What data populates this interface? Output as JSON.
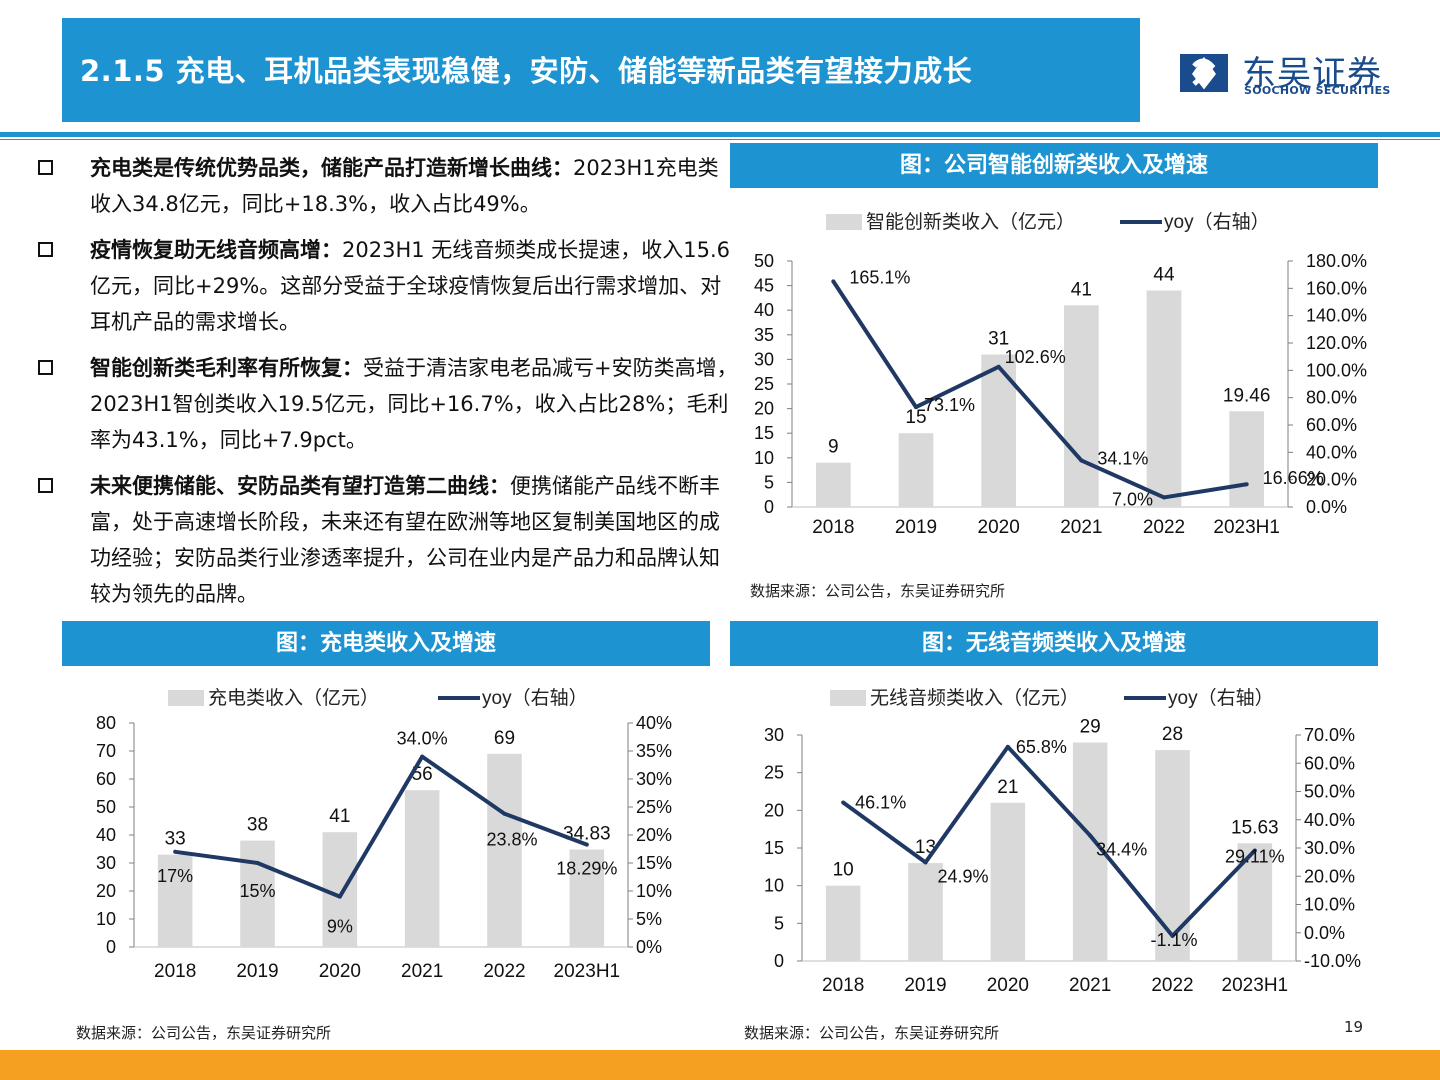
{
  "header": {
    "title": "2.1.5 充电、耳机品类表现稳健，安防、储能等新品类有望接力成长",
    "logo_cn": "东吴证券",
    "logo_en": "SOOCHOW SECURITIES"
  },
  "bullets": [
    {
      "bold": "充电类是传统优势品类，储能产品打造新增长曲线：",
      "text": "2023H1充电类收入34.8亿元，同比+18.3%，收入占比49%。"
    },
    {
      "bold": "疫情恢复助无线音频高增：",
      "text": "2023H1 无线音频类成长提速，收入15.6亿元，同比+29%。这部分受益于全球疫情恢复后出行需求增加、对耳机产品的需求增长。"
    },
    {
      "bold": "智能创新类毛利率有所恢复：",
      "text": "受益于清洁家电老品减亏+安防类高增，2023H1智创类收入19.5亿元，同比+16.7%，收入占比28%；毛利率为43.1%，同比+7.9pct。"
    },
    {
      "bold": "未来便携储能、安防品类有望打造第二曲线：",
      "text": "便携储能产品线不断丰富，处于高速增长阶段，未来还有望在欧洲等地区复制美国地区的成功经验；安防品类行业渗透率提升，公司在业内是产品力和品牌认知较为领先的品牌。"
    }
  ],
  "source_text": "数据来源：公司公告，东吴证券研究所",
  "page_number": "19",
  "colors": {
    "accent": "#1d93d1",
    "bar": "#d9d9d9",
    "line": "#1f3864",
    "footer": "#f5a020"
  },
  "chart_data": [
    {
      "id": "smart",
      "type": "bar",
      "title": "图：公司智能创新类收入及增速",
      "categories": [
        "2018",
        "2019",
        "2020",
        "2021",
        "2022",
        "2023H1"
      ],
      "bar_series": {
        "name": "智能创新类收入（亿元）",
        "values": [
          9,
          15,
          31,
          41,
          44,
          19.46
        ],
        "labels": [
          "9",
          "15",
          "31",
          "41",
          "44",
          "19.46"
        ]
      },
      "line_series": {
        "name": "yoy（右轴）",
        "values": [
          165.1,
          73.1,
          102.6,
          34.1,
          7.0,
          16.66
        ],
        "labels": [
          "165.1%",
          "73.1%",
          "102.6%",
          "34.1%",
          "7.0%",
          "16.66%"
        ]
      },
      "y_left": {
        "min": 0,
        "max": 50,
        "ticks": [
          "0",
          "5",
          "10",
          "15",
          "20",
          "25",
          "30",
          "35",
          "40",
          "45",
          "50"
        ]
      },
      "y_right": {
        "min": 0,
        "max": 180,
        "ticks": [
          "0.0%",
          "20.0%",
          "40.0%",
          "60.0%",
          "80.0%",
          "100.0%",
          "120.0%",
          "140.0%",
          "160.0%",
          "180.0%"
        ]
      },
      "legend_bar": "智能创新类收入（亿元）",
      "legend_line": "yoy（右轴）"
    },
    {
      "id": "charge",
      "type": "bar",
      "title": "图：充电类收入及增速",
      "categories": [
        "2018",
        "2019",
        "2020",
        "2021",
        "2022",
        "2023H1"
      ],
      "bar_series": {
        "name": "充电类收入（亿元）",
        "values": [
          33,
          38,
          41,
          56,
          69,
          34.83
        ],
        "labels": [
          "33",
          "38",
          "41",
          "56",
          "69",
          "34.83"
        ]
      },
      "line_series": {
        "name": "yoy（右轴）",
        "values": [
          17,
          15,
          9,
          34.0,
          23.8,
          18.29
        ],
        "labels": [
          "17%",
          "15%",
          "9%",
          "34.0%",
          "23.8%",
          "18.29%"
        ]
      },
      "y_left": {
        "min": 0,
        "max": 80,
        "ticks": [
          "0",
          "10",
          "20",
          "30",
          "40",
          "50",
          "60",
          "70",
          "80"
        ]
      },
      "y_right": {
        "min": 0,
        "max": 40,
        "ticks": [
          "0%",
          "5%",
          "10%",
          "15%",
          "20%",
          "25%",
          "30%",
          "35%",
          "40%"
        ]
      },
      "legend_bar": "充电类收入（亿元）",
      "legend_line": "yoy（右轴）"
    },
    {
      "id": "audio",
      "type": "bar",
      "title": "图：无线音频类收入及增速",
      "categories": [
        "2018",
        "2019",
        "2020",
        "2021",
        "2022",
        "2023H1"
      ],
      "bar_series": {
        "name": "无线音频类收入（亿元）",
        "values": [
          10,
          13,
          21,
          29,
          28,
          15.63
        ],
        "labels": [
          "10",
          "13",
          "21",
          "29",
          "28",
          "15.63"
        ]
      },
      "line_series": {
        "name": "yoy（右轴）",
        "values": [
          46.1,
          24.9,
          65.8,
          34.4,
          -1.1,
          29.11
        ],
        "labels": [
          "46.1%",
          "24.9%",
          "65.8%",
          "34.4%",
          "-1.1%",
          "29.11%"
        ]
      },
      "y_left": {
        "min": 0,
        "max": 30,
        "ticks": [
          "0",
          "5",
          "10",
          "15",
          "20",
          "25",
          "30"
        ]
      },
      "y_right": {
        "min": -10,
        "max": 70,
        "ticks": [
          "-10.0%",
          "0.0%",
          "10.0%",
          "20.0%",
          "30.0%",
          "40.0%",
          "50.0%",
          "60.0%",
          "70.0%"
        ]
      },
      "legend_bar": "无线音频类收入（亿元）",
      "legend_line": "yoy（右轴）"
    }
  ]
}
